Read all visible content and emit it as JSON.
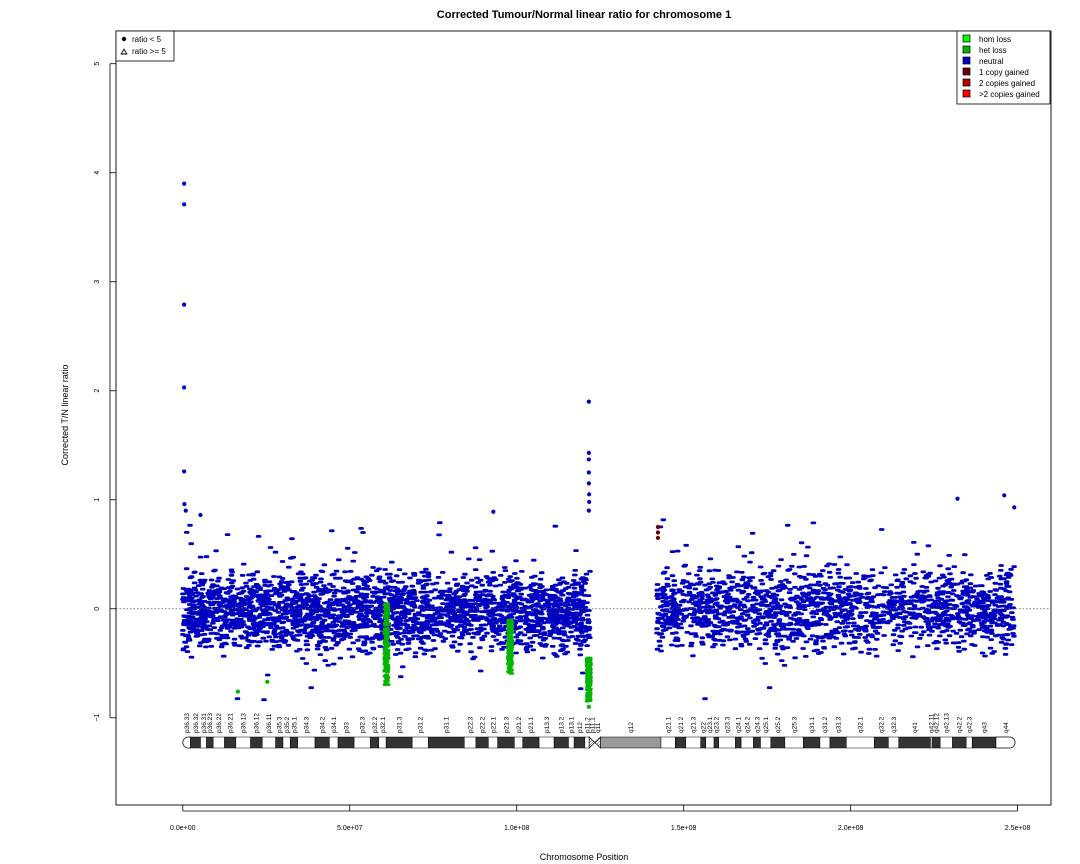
{
  "chart_data": {
    "type": "scatter",
    "title": "Corrected Tumour/Normal linear ratio for chromosome  1",
    "xlabel": "Chromosome Position",
    "ylabel": "Corrected T/N linear ratio",
    "xlim": [
      -20000000,
      260000000
    ],
    "ylim": [
      -1.8,
      5.3
    ],
    "x_ticks": [
      0,
      50000000,
      100000000,
      150000000,
      200000000,
      250000000
    ],
    "x_tick_labels": [
      "0.0e+00",
      "5.0e+07",
      "1.0e+08",
      "1.5e+08",
      "2.0e+08",
      "2.5e+08"
    ],
    "y_ticks": [
      -1,
      0,
      1,
      2,
      3,
      4,
      5
    ],
    "y_tick_labels": [
      "−1",
      "0",
      "1",
      "2",
      "3",
      "4",
      "5"
    ],
    "reference_line_y": 0,
    "colors": {
      "hom_loss": "#00ff00",
      "het_loss": "#00b400",
      "neutral": "#0000c0",
      "one_gain": "#6e0000",
      "two_gain": "#b40000",
      "more_gain": "#ff0000"
    },
    "shape_legend": [
      {
        "label": "ratio < 5",
        "symbol": "filled-circle"
      },
      {
        "label": "ratio >= 5",
        "symbol": "open-triangle"
      }
    ],
    "legend": [
      {
        "label": "hom loss",
        "color": "#00ff00"
      },
      {
        "label": "het loss",
        "color": "#00b400"
      },
      {
        "label": "neutral",
        "color": "#0000c0"
      },
      {
        "label": "1 copy gained",
        "color": "#6e0000"
      },
      {
        "label": "2 copies gained",
        "color": "#b40000"
      },
      {
        "label": ">2 copies gained",
        "color": "#ff0000"
      }
    ],
    "shape_legend_position": "top-left",
    "legend_position": "top-right",
    "segments": [
      {
        "x_start": 0,
        "x_end": 122000000,
        "band_low": -0.45,
        "band_high": 0.5,
        "status": "neutral"
      },
      {
        "x_start": 142000000,
        "x_end": 249000000,
        "band_low": -0.45,
        "band_high": 0.55,
        "status": "neutral"
      }
    ],
    "het_loss_clusters": [
      {
        "x": 61000000,
        "y_min": -0.7,
        "y_max": 0.05
      },
      {
        "x": 98000000,
        "y_min": -0.6,
        "y_max": -0.1
      },
      {
        "x": 121600000,
        "y_min": -0.85,
        "y_max": -0.45
      }
    ],
    "outliers": [
      {
        "x": 400000,
        "y": 3.9
      },
      {
        "x": 400000,
        "y": 3.71
      },
      {
        "x": 400000,
        "y": 2.79
      },
      {
        "x": 400000,
        "y": 2.03
      },
      {
        "x": 400000,
        "y": 1.26
      },
      {
        "x": 500000,
        "y": 0.96
      },
      {
        "x": 900000,
        "y": 0.9
      },
      {
        "x": 5300000,
        "y": 0.86
      },
      {
        "x": 16500000,
        "y": -0.76
      },
      {
        "x": 25300000,
        "y": -0.67
      },
      {
        "x": 121600000,
        "y": 1.9
      },
      {
        "x": 121600000,
        "y": 1.43
      },
      {
        "x": 121600000,
        "y": 1.37
      },
      {
        "x": 121600000,
        "y": 1.25
      },
      {
        "x": 121600000,
        "y": 1.15
      },
      {
        "x": 121700000,
        "y": 1.05
      },
      {
        "x": 121700000,
        "y": 0.98
      },
      {
        "x": 121600000,
        "y": 0.9
      },
      {
        "x": 121600000,
        "y": -0.9
      },
      {
        "x": 93000000,
        "y": 0.89
      },
      {
        "x": 232000000,
        "y": 1.01
      },
      {
        "x": 246000000,
        "y": 1.04
      },
      {
        "x": 249000000,
        "y": 0.93
      }
    ],
    "gain_points": [
      {
        "x": 142300000,
        "y": 0.75
      },
      {
        "x": 142300000,
        "y": 0.7
      },
      {
        "x": 142300000,
        "y": 0.65
      }
    ],
    "ideogram": {
      "label_row": "below data",
      "bands": [
        {
          "name": "p36.33",
          "start": 0,
          "end": 2300000,
          "stain": "gneg"
        },
        {
          "name": "p36.32",
          "start": 2300000,
          "end": 5300000,
          "stain": "gpos25"
        },
        {
          "name": "p36.31",
          "start": 5300000,
          "end": 7100000,
          "stain": "gneg"
        },
        {
          "name": "p36.23",
          "start": 7100000,
          "end": 9100000,
          "stain": "gpos25"
        },
        {
          "name": "p36.22",
          "start": 9100000,
          "end": 12500000,
          "stain": "gneg"
        },
        {
          "name": "p36.21",
          "start": 12500000,
          "end": 15900000,
          "stain": "gpos50"
        },
        {
          "name": "p36.13",
          "start": 15900000,
          "end": 20300000,
          "stain": "gneg"
        },
        {
          "name": "p36.12",
          "start": 20300000,
          "end": 23800000,
          "stain": "gpos25"
        },
        {
          "name": "p36.11",
          "start": 23800000,
          "end": 27800000,
          "stain": "gneg"
        },
        {
          "name": "p35.3",
          "start": 27800000,
          "end": 30000000,
          "stain": "gpos25"
        },
        {
          "name": "p35.2",
          "start": 30000000,
          "end": 32200000,
          "stain": "gneg"
        },
        {
          "name": "p35.1",
          "start": 32200000,
          "end": 34400000,
          "stain": "gpos25"
        },
        {
          "name": "p34.3",
          "start": 34400000,
          "end": 39600000,
          "stain": "gneg"
        },
        {
          "name": "p34.2",
          "start": 39600000,
          "end": 43900000,
          "stain": "gpos25"
        },
        {
          "name": "p34.1",
          "start": 43900000,
          "end": 46500000,
          "stain": "gneg"
        },
        {
          "name": "p33",
          "start": 46500000,
          "end": 51300000,
          "stain": "gpos75"
        },
        {
          "name": "p32.3",
          "start": 51300000,
          "end": 56200000,
          "stain": "gneg"
        },
        {
          "name": "p32.2",
          "start": 56200000,
          "end": 58700000,
          "stain": "gpos50"
        },
        {
          "name": "p32.1",
          "start": 58700000,
          "end": 60900000,
          "stain": "gneg"
        },
        {
          "name": "p31.3",
          "start": 60900000,
          "end": 68700000,
          "stain": "gpos50"
        },
        {
          "name": "p31.2",
          "start": 68700000,
          "end": 73500000,
          "stain": "gneg"
        },
        {
          "name": "p31.1",
          "start": 73500000,
          "end": 84300000,
          "stain": "gpos100"
        },
        {
          "name": "p22.3",
          "start": 84300000,
          "end": 87800000,
          "stain": "gneg"
        },
        {
          "name": "p22.2",
          "start": 87800000,
          "end": 91500000,
          "stain": "gpos75"
        },
        {
          "name": "p22.1",
          "start": 91500000,
          "end": 94300000,
          "stain": "gneg"
        },
        {
          "name": "p21.3",
          "start": 94300000,
          "end": 99300000,
          "stain": "gpos75"
        },
        {
          "name": "p21.2",
          "start": 99300000,
          "end": 101800000,
          "stain": "gneg"
        },
        {
          "name": "p21.1",
          "start": 101800000,
          "end": 106700000,
          "stain": "gpos100"
        },
        {
          "name": "p13.3",
          "start": 106700000,
          "end": 111200000,
          "stain": "gneg"
        },
        {
          "name": "p13.2",
          "start": 111200000,
          "end": 115500000,
          "stain": "gpos50"
        },
        {
          "name": "p13.1",
          "start": 115500000,
          "end": 117200000,
          "stain": "gneg"
        },
        {
          "name": "p12",
          "start": 117200000,
          "end": 120400000,
          "stain": "gpos50"
        },
        {
          "name": "p11.2",
          "start": 120400000,
          "end": 121700000,
          "stain": "gneg"
        },
        {
          "name": "p11.1",
          "start": 121700000,
          "end": 123400000,
          "stain": "acen"
        },
        {
          "name": "q11",
          "start": 123400000,
          "end": 125100000,
          "stain": "acen"
        },
        {
          "name": "q12",
          "start": 125100000,
          "end": 143200000,
          "stain": "gvar"
        },
        {
          "name": "q21.1",
          "start": 143200000,
          "end": 147500000,
          "stain": "gneg"
        },
        {
          "name": "q21.2",
          "start": 147500000,
          "end": 150600000,
          "stain": "gpos50"
        },
        {
          "name": "q21.3",
          "start": 150600000,
          "end": 155100000,
          "stain": "gneg"
        },
        {
          "name": "q22",
          "start": 155100000,
          "end": 156600000,
          "stain": "gpos50"
        },
        {
          "name": "q23.1",
          "start": 156600000,
          "end": 159100000,
          "stain": "gneg"
        },
        {
          "name": "q23.2",
          "start": 159100000,
          "end": 160500000,
          "stain": "gpos50"
        },
        {
          "name": "q23.3",
          "start": 160500000,
          "end": 165500000,
          "stain": "gneg"
        },
        {
          "name": "q24.1",
          "start": 165500000,
          "end": 167200000,
          "stain": "gpos50"
        },
        {
          "name": "q24.2",
          "start": 167200000,
          "end": 170900000,
          "stain": "gneg"
        },
        {
          "name": "q24.3",
          "start": 170900000,
          "end": 173000000,
          "stain": "gpos75"
        },
        {
          "name": "q25.1",
          "start": 173000000,
          "end": 176100000,
          "stain": "gneg"
        },
        {
          "name": "q25.2",
          "start": 176100000,
          "end": 180300000,
          "stain": "gpos50"
        },
        {
          "name": "q25.3",
          "start": 180300000,
          "end": 185800000,
          "stain": "gneg"
        },
        {
          "name": "q31.1",
          "start": 185800000,
          "end": 190800000,
          "stain": "gpos100"
        },
        {
          "name": "q31.2",
          "start": 190800000,
          "end": 193800000,
          "stain": "gneg"
        },
        {
          "name": "q31.3",
          "start": 193800000,
          "end": 198700000,
          "stain": "gpos100"
        },
        {
          "name": "q32.1",
          "start": 198700000,
          "end": 207100000,
          "stain": "gneg"
        },
        {
          "name": "q32.2",
          "start": 207100000,
          "end": 211300000,
          "stain": "gpos25"
        },
        {
          "name": "q32.3",
          "start": 211300000,
          "end": 214400000,
          "stain": "gneg"
        },
        {
          "name": "q41",
          "start": 214400000,
          "end": 223900000,
          "stain": "gpos100"
        },
        {
          "name": "q42.11",
          "start": 223900000,
          "end": 224400000,
          "stain": "gneg"
        },
        {
          "name": "q42.12",
          "start": 224400000,
          "end": 226800000,
          "stain": "gpos25"
        },
        {
          "name": "q42.13",
          "start": 226800000,
          "end": 230500000,
          "stain": "gneg"
        },
        {
          "name": "q42.2",
          "start": 230500000,
          "end": 234600000,
          "stain": "gpos50"
        },
        {
          "name": "q42.3",
          "start": 234600000,
          "end": 236400000,
          "stain": "gneg"
        },
        {
          "name": "q43",
          "start": 236400000,
          "end": 243500000,
          "stain": "gpos75"
        },
        {
          "name": "q44",
          "start": 243500000,
          "end": 249250621,
          "stain": "gneg"
        }
      ]
    }
  }
}
